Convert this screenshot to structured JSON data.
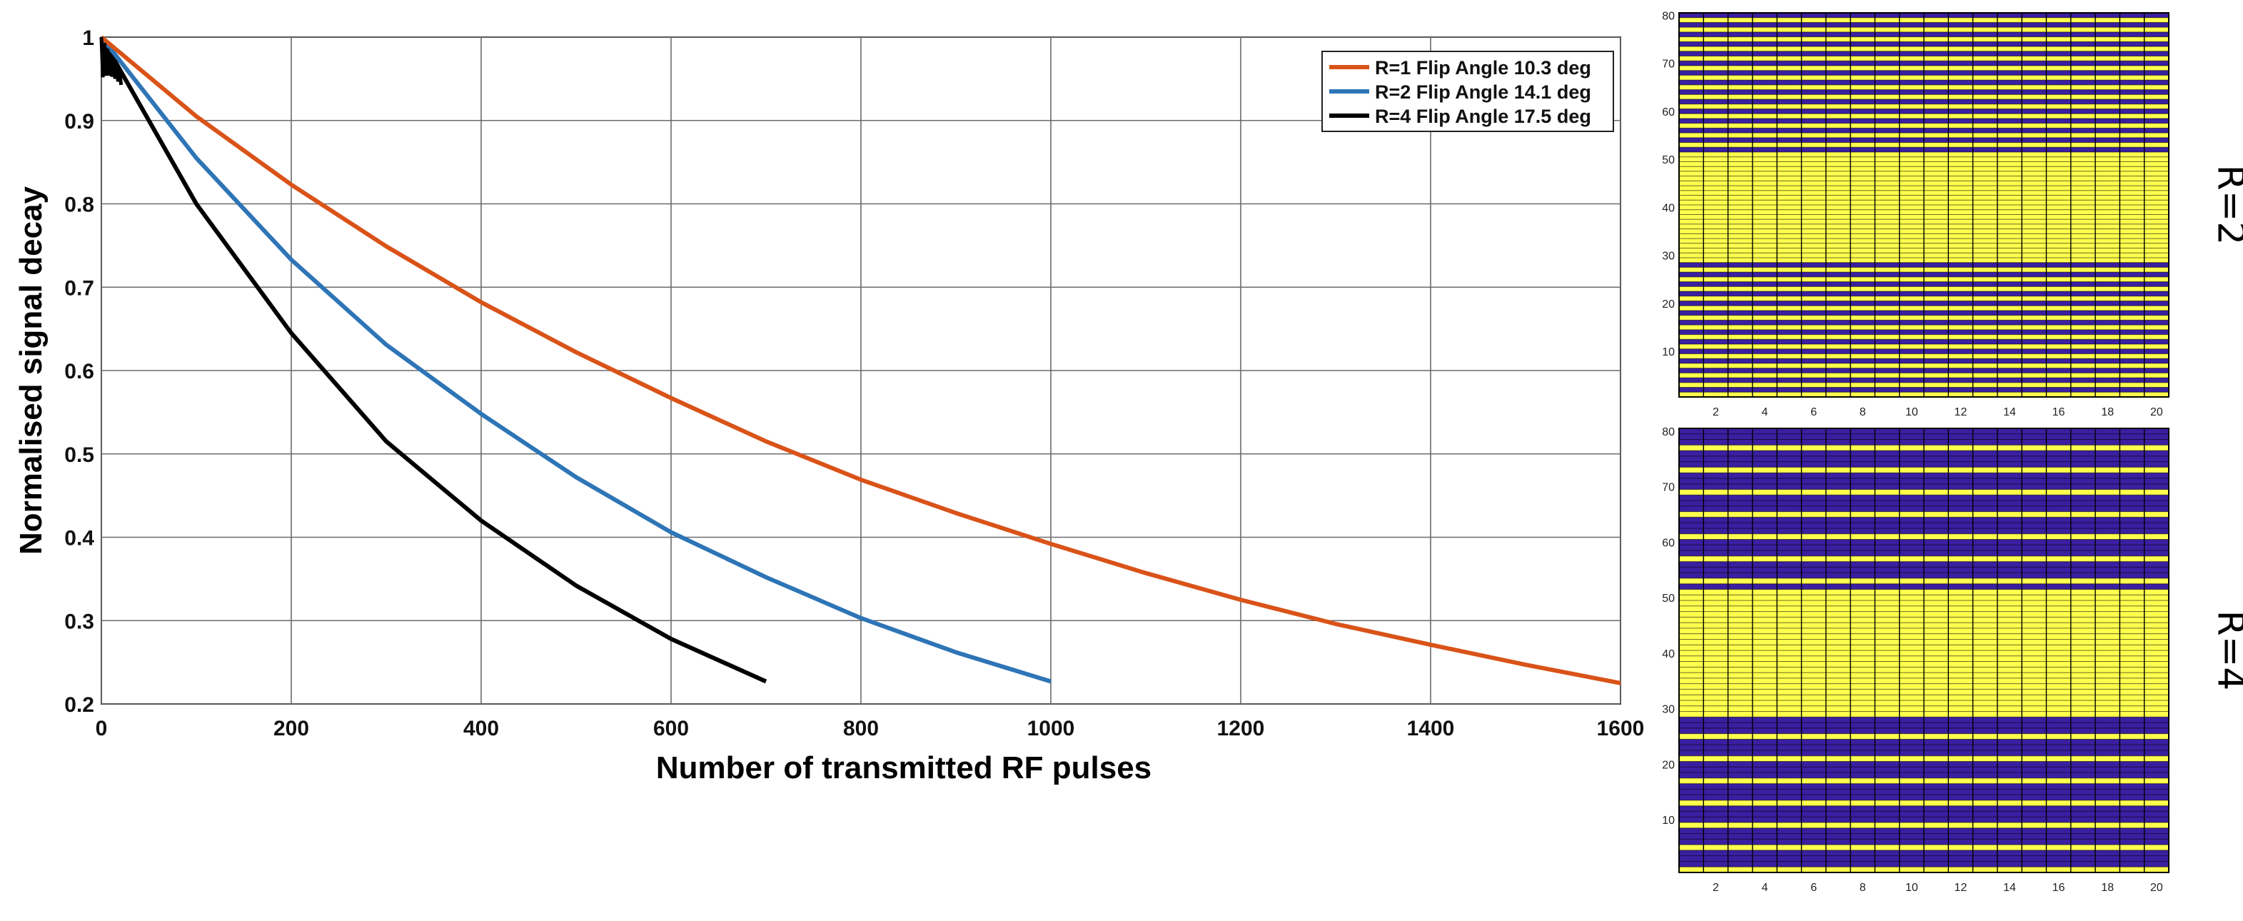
{
  "chart_data": [
    {
      "type": "line",
      "xlabel": "Number of transmitted RF pulses",
      "ylabel": "Normalised signal decay",
      "xlim": [
        0,
        1600
      ],
      "ylim": [
        0.2,
        1
      ],
      "x_ticks": [
        "0",
        "200",
        "400",
        "600",
        "800",
        "1000",
        "1200",
        "1400",
        "1600"
      ],
      "y_ticks": [
        "0.2",
        "0.3",
        "0.4",
        "0.5",
        "0.6",
        "0.7",
        "0.8",
        "0.9",
        "1"
      ],
      "grid": true,
      "legend_position": "top-right",
      "series": [
        {
          "name": "R=1 Flip Angle 10.3 deg",
          "color": "#d95319",
          "x": [
            0,
            100,
            200,
            300,
            400,
            500,
            600,
            700,
            800,
            900,
            1000,
            1100,
            1200,
            1300,
            1400,
            1500,
            1600
          ],
          "y": [
            1.0,
            0.905,
            0.823,
            0.749,
            0.682,
            0.622,
            0.567,
            0.515,
            0.469,
            0.429,
            0.392,
            0.357,
            0.325,
            0.296,
            0.271,
            0.247,
            0.225
          ]
        },
        {
          "name": "R=2 Flip Angle 14.1 deg",
          "color": "#2e75b6",
          "x": [
            0,
            100,
            200,
            300,
            400,
            500,
            600,
            700,
            800,
            900,
            1000
          ],
          "y": [
            1.0,
            0.855,
            0.733,
            0.631,
            0.548,
            0.472,
            0.406,
            0.352,
            0.303,
            0.262,
            0.227
          ]
        },
        {
          "name": "R=4 Flip Angle 17.5 deg",
          "color": "#000000",
          "x": [
            0,
            100,
            200,
            300,
            400,
            500,
            600,
            700
          ],
          "y": [
            1.0,
            0.8,
            0.645,
            0.515,
            0.42,
            0.342,
            0.278,
            0.227
          ]
        }
      ]
    },
    {
      "type": "heatmap",
      "side_label": "R=2",
      "xlim": [
        0,
        20
      ],
      "ylim": [
        0,
        80
      ],
      "x_ticks": [
        "2",
        "4",
        "6",
        "8",
        "10",
        "12",
        "14",
        "16",
        "18",
        "20"
      ],
      "y_ticks": [
        "10",
        "20",
        "30",
        "40",
        "50",
        "60",
        "70",
        "80"
      ],
      "colors": {
        "sampled": "#ffff4d",
        "unsampled": "#3a1fa0"
      },
      "fully_sampled_rows": [
        29,
        51
      ],
      "undersampled_row_period": 2
    },
    {
      "type": "heatmap",
      "side_label": "R=4",
      "xlim": [
        0,
        20
      ],
      "ylim": [
        0,
        80
      ],
      "x_ticks": [
        "2",
        "4",
        "6",
        "8",
        "10",
        "12",
        "14",
        "16",
        "18",
        "20"
      ],
      "y_ticks": [
        "10",
        "20",
        "30",
        "40",
        "50",
        "60",
        "70",
        "80"
      ],
      "colors": {
        "sampled": "#ffff4d",
        "unsampled": "#3a1fa0"
      },
      "fully_sampled_rows": [
        29,
        51
      ],
      "undersampled_row_period": 4
    }
  ]
}
